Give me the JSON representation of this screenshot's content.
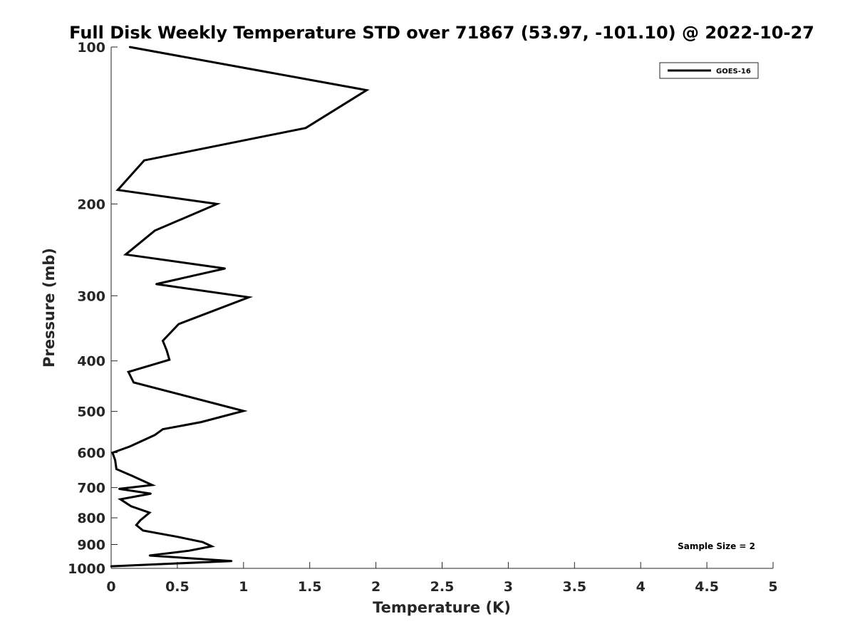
{
  "chart_data": {
    "type": "line",
    "title": "Full Disk Weekly Temperature STD over 71867 (53.97, -101.10) @ 2022-10-27",
    "xlabel": "Temperature (K)",
    "ylabel": "Pressure (mb)",
    "xlim": [
      0,
      5
    ],
    "ylim": [
      100,
      1000
    ],
    "yscale": "log",
    "y_reversed": true,
    "x_ticks": [
      "0",
      "0.5",
      "1",
      "1.5",
      "2",
      "2.5",
      "3",
      "3.5",
      "4",
      "4.5",
      "5"
    ],
    "y_ticks": [
      "100",
      "200",
      "300",
      "400",
      "500",
      "600",
      "700",
      "800",
      "900",
      "1000"
    ],
    "legend_position": "top-right",
    "grid": false,
    "annotation": "Sample Size = 2",
    "series": [
      {
        "name": "GOES-16",
        "color": "#000000",
        "points": [
          [
            0.14,
            100
          ],
          [
            1.93,
            121
          ],
          [
            1.47,
            143
          ],
          [
            0.25,
            165
          ],
          [
            0.05,
            188
          ],
          [
            0.8,
            200
          ],
          [
            0.33,
            225
          ],
          [
            0.11,
            250
          ],
          [
            0.86,
            266
          ],
          [
            0.34,
            285
          ],
          [
            1.04,
            302
          ],
          [
            0.51,
            340
          ],
          [
            0.39,
            366
          ],
          [
            0.42,
            382
          ],
          [
            0.44,
            398
          ],
          [
            0.13,
            420
          ],
          [
            0.17,
            440
          ],
          [
            1.0,
            499
          ],
          [
            0.68,
            524
          ],
          [
            0.39,
            541
          ],
          [
            0.33,
            555
          ],
          [
            0.14,
            584
          ],
          [
            0.01,
            600
          ],
          [
            0.03,
            620
          ],
          [
            0.04,
            645
          ],
          [
            0.16,
            665
          ],
          [
            0.31,
            692
          ],
          [
            0.06,
            704
          ],
          [
            0.3,
            719
          ],
          [
            0.07,
            737
          ],
          [
            0.15,
            760
          ],
          [
            0.29,
            782
          ],
          [
            0.22,
            809
          ],
          [
            0.19,
            826
          ],
          [
            0.24,
            846
          ],
          [
            0.5,
            870
          ],
          [
            0.69,
            890
          ],
          [
            0.76,
            907
          ],
          [
            0.59,
            925
          ],
          [
            0.29,
            945
          ],
          [
            0.91,
            968
          ],
          [
            0.0,
            991
          ]
        ]
      }
    ]
  }
}
